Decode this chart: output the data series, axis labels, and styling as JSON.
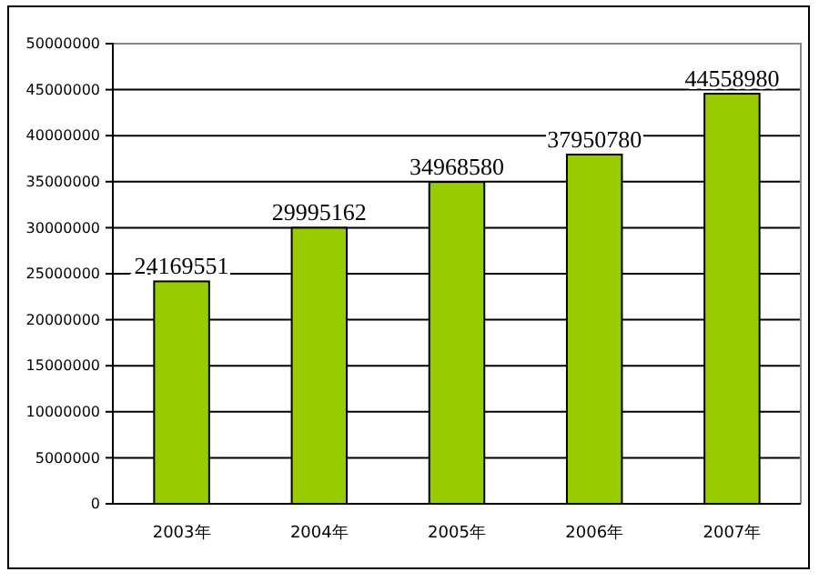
{
  "chart_data": {
    "type": "bar",
    "categories": [
      "2003年",
      "2004年",
      "2005年",
      "2006年",
      "2007年"
    ],
    "values": [
      24169551,
      29995162,
      34968580,
      37950780,
      44558980
    ],
    "color": "#99cc00",
    "ylim": [
      0,
      50000000
    ],
    "yticks": [
      0,
      5000000,
      10000000,
      15000000,
      20000000,
      25000000,
      30000000,
      35000000,
      40000000,
      45000000,
      50000000
    ],
    "grid": "y",
    "data_labels": true
  }
}
